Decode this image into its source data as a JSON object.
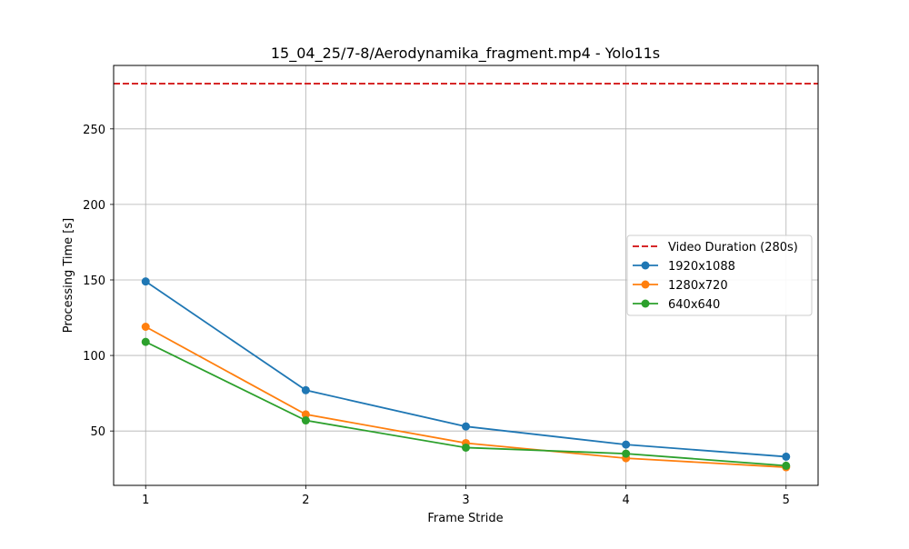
{
  "chart_data": {
    "type": "line",
    "title": "15_04_25/7-8/Aerodynamika_fragment.mp4 - Yolo11s",
    "xlabel": "Frame Stride",
    "ylabel": "Processing Time [s]",
    "x": [
      1,
      2,
      3,
      4,
      5
    ],
    "xticks": [
      1,
      2,
      3,
      4,
      5
    ],
    "yticks": [
      50,
      100,
      150,
      200,
      250
    ],
    "xlim": [
      0.8,
      5.2
    ],
    "ylim": [
      14,
      292
    ],
    "grid": true,
    "legend_position": "center-right",
    "reference_line": {
      "name": "Video Duration (280s)",
      "value": 280,
      "color": "#d62728",
      "style": "dashed"
    },
    "series": [
      {
        "name": "1920x1088",
        "values": [
          149,
          77,
          53,
          41,
          33
        ],
        "color": "#1f77b4"
      },
      {
        "name": "1280x720",
        "values": [
          119,
          61,
          42,
          32,
          26
        ],
        "color": "#ff7f0e"
      },
      {
        "name": "640x640",
        "values": [
          109,
          57,
          39,
          35,
          27
        ],
        "color": "#2ca02c"
      }
    ]
  }
}
